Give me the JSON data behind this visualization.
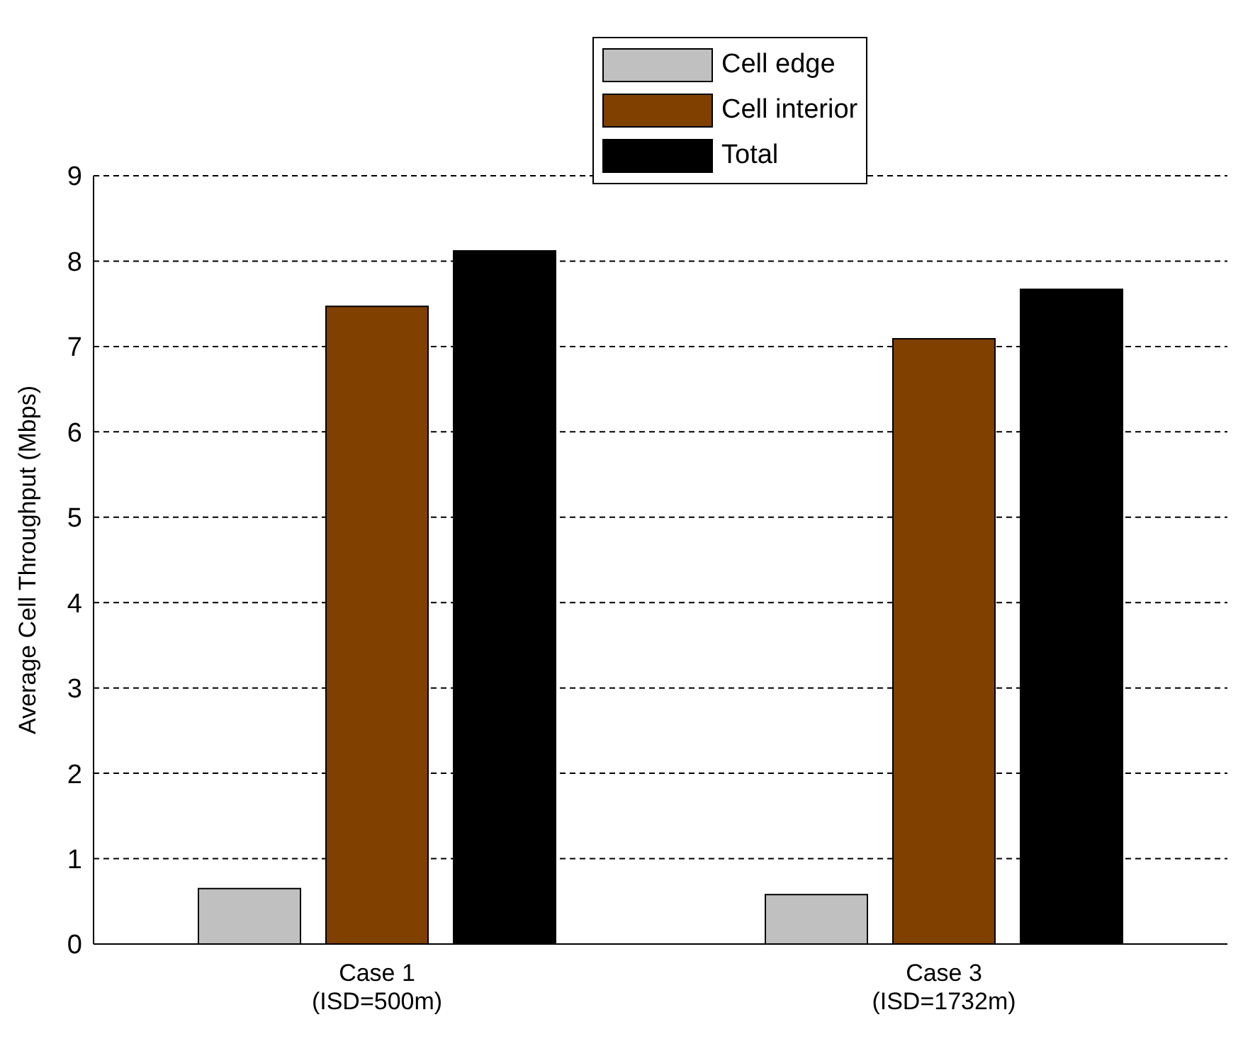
{
  "chart_data": {
    "type": "bar",
    "ylabel": "Average Cell Throughput (Mbps)",
    "categories": [
      "Case 1\n(ISD=500m)",
      "Case 3\n(ISD=1732m)"
    ],
    "series": [
      {
        "name": "Cell edge",
        "color": "#c0c0c0",
        "values": [
          0.65,
          0.58
        ]
      },
      {
        "name": "Cell interior",
        "color": "#804000",
        "values": [
          7.47,
          7.09
        ]
      },
      {
        "name": "Total",
        "color": "#000000",
        "values": [
          8.12,
          7.67
        ]
      }
    ],
    "ylim": [
      0,
      9
    ],
    "yticks": [
      0,
      1,
      2,
      3,
      4,
      5,
      6,
      7,
      8,
      9
    ],
    "grid": "y",
    "legend": "top"
  }
}
